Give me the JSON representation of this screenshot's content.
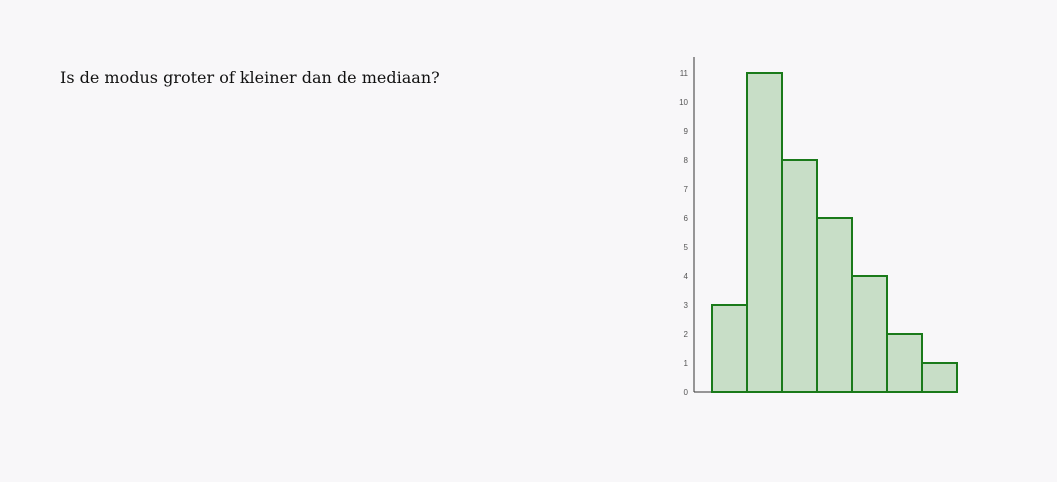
{
  "question": {
    "text": "Is de modus groter of kleiner dan de mediaan?"
  },
  "chart_data": {
    "type": "bar",
    "values": [
      3,
      11,
      8,
      6,
      4,
      2,
      1
    ],
    "ylim": [
      0,
      11
    ],
    "yticks": [
      0,
      1,
      2,
      3,
      4,
      5,
      6,
      7,
      8,
      9,
      10,
      11
    ],
    "title": "",
    "xlabel": "",
    "ylabel": "",
    "grid": false,
    "bar_fill": "#c8dec7",
    "bar_stroke": "#1a7a1a",
    "axis_color": "#333333"
  }
}
